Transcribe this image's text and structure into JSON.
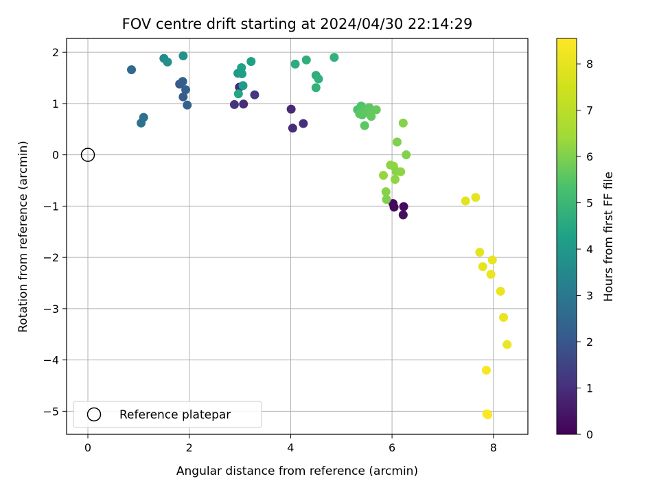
{
  "chart_data": {
    "type": "scatter",
    "title": "FOV centre drift starting at 2024/04/30 22:14:29",
    "xlabel": "Angular distance from reference (arcmin)",
    "ylabel": "Rotation from reference (arcmin)",
    "xlim": [
      -0.42,
      8.68
    ],
    "ylim": [
      -5.45,
      2.27
    ],
    "xticks": [
      0,
      2,
      4,
      6,
      8
    ],
    "yticks": [
      -5,
      -4,
      -3,
      -2,
      -1,
      0,
      1,
      2
    ],
    "grid": true,
    "legend": {
      "position": "lower-left",
      "entries": [
        "Reference platepar"
      ]
    },
    "reference_point": {
      "label": "Reference platepar",
      "x": 0,
      "y": 0,
      "marker": "open-circle"
    },
    "colorbar": {
      "label": "Hours from first FF file",
      "range": [
        0,
        8.55
      ],
      "ticks": [
        0,
        1,
        2,
        3,
        4,
        5,
        6,
        7,
        8
      ],
      "colormap": "viridis"
    },
    "series": [
      {
        "x": [
          6.02,
          6.04,
          6.23,
          6.22,
          2.99,
          3.07,
          2.89,
          3.29,
          4.01,
          4.04,
          4.25,
          0.86,
          1.05,
          1.1,
          1.81,
          1.88,
          1.93,
          1.87,
          1.96,
          1.5,
          1.57,
          1.88,
          2.96,
          3.01,
          3.06,
          3.22,
          3.03,
          3.04,
          2.97,
          4.09,
          4.31,
          4.86,
          4.5,
          4.55,
          4.5,
          5.32,
          5.39,
          5.41,
          5.45,
          5.5,
          5.55,
          5.59,
          5.69,
          5.46,
          5.36,
          5.48,
          5.57,
          6.22,
          6.1,
          6.28,
          5.97,
          6.03,
          6.08,
          6.17,
          5.83,
          5.88,
          5.89,
          6.06,
          7.45,
          7.65,
          7.73,
          7.79,
          7.98,
          7.95,
          8.14,
          8.2,
          8.27,
          7.86,
          7.87,
          7.89
        ],
        "y": [
          -0.95,
          -1.02,
          -1.01,
          -1.17,
          1.32,
          0.99,
          0.98,
          1.17,
          0.89,
          0.52,
          0.61,
          1.66,
          0.62,
          0.73,
          1.38,
          1.13,
          1.27,
          1.43,
          0.97,
          1.88,
          1.81,
          1.93,
          1.59,
          1.62,
          1.35,
          1.82,
          1.7,
          1.58,
          1.19,
          1.77,
          1.85,
          1.9,
          1.55,
          1.48,
          1.31,
          0.88,
          0.95,
          0.78,
          0.9,
          0.85,
          0.92,
          0.75,
          0.88,
          0.57,
          0.8,
          0.82,
          0.83,
          0.62,
          0.25,
          0.0,
          -0.2,
          -0.22,
          -0.32,
          -0.33,
          -0.4,
          -0.72,
          -0.87,
          -0.48,
          -0.9,
          -0.83,
          -1.9,
          -2.18,
          -2.05,
          -2.33,
          -2.66,
          -3.17,
          -3.7,
          -4.2,
          -5.05,
          -5.07
        ],
        "hours": [
          0.15,
          0.2,
          0.25,
          0.3,
          0.9,
          0.95,
          1.15,
          1.2,
          0.9,
          0.95,
          1.0,
          2.55,
          2.8,
          2.85,
          2.05,
          2.1,
          2.25,
          2.2,
          2.35,
          3.6,
          3.7,
          3.8,
          3.9,
          4.0,
          4.1,
          4.2,
          4.3,
          4.2,
          4.4,
          4.6,
          4.7,
          4.8,
          4.7,
          4.75,
          4.8,
          5.3,
          5.4,
          5.45,
          5.5,
          5.55,
          5.6,
          5.65,
          5.7,
          5.6,
          5.55,
          5.6,
          5.65,
          6.1,
          6.0,
          6.05,
          6.15,
          6.2,
          6.1,
          6.2,
          6.3,
          6.1,
          6.0,
          6.2,
          7.9,
          7.95,
          8.0,
          8.0,
          8.05,
          8.1,
          8.1,
          8.1,
          8.15,
          8.4,
          8.5,
          8.5
        ]
      }
    ]
  },
  "colors": {
    "grid": "#b0b0b0",
    "axes": "#000000",
    "legend_border": "#cccccc"
  }
}
